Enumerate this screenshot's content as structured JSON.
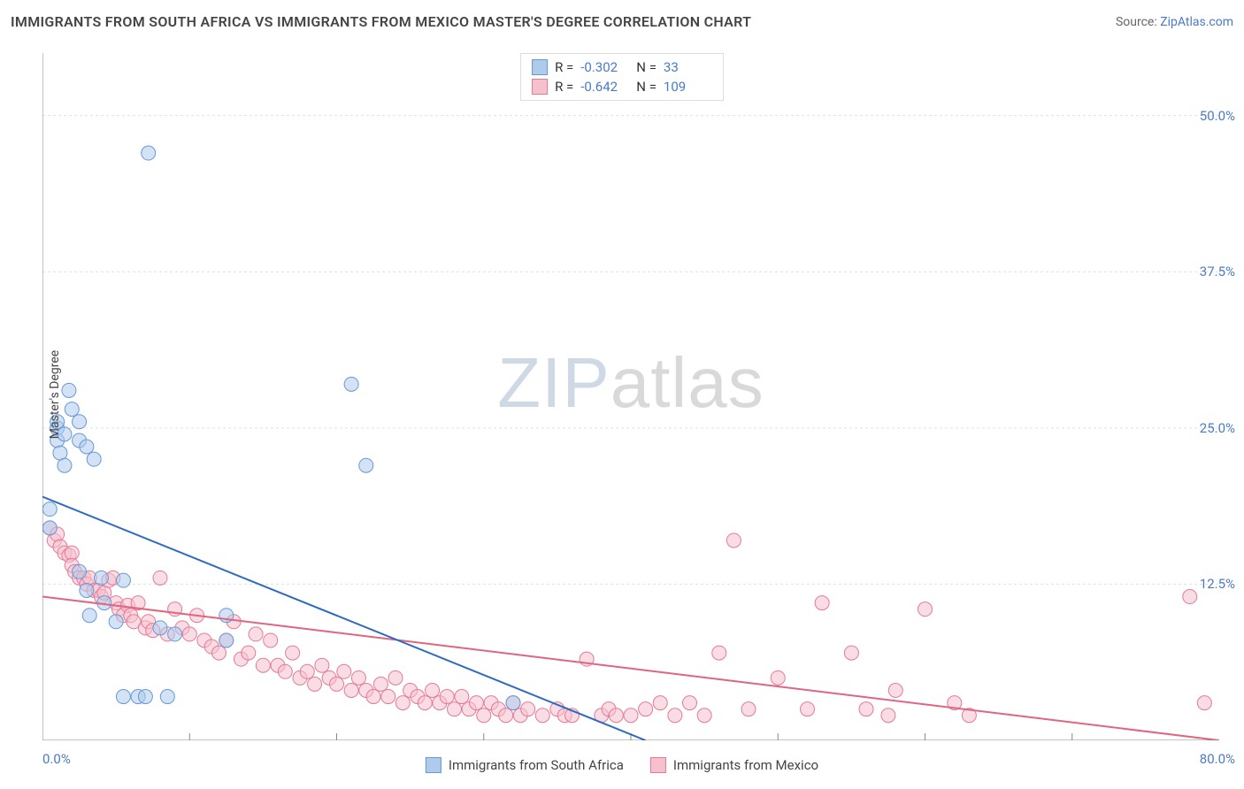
{
  "title": "IMMIGRANTS FROM SOUTH AFRICA VS IMMIGRANTS FROM MEXICO MASTER'S DEGREE CORRELATION CHART",
  "source_label": "Source:",
  "source_link_text": "ZipAtlas.com",
  "ylabel": "Master's Degree",
  "watermark_bold": "ZIP",
  "watermark_thin": "atlas",
  "correlation": [
    {
      "swatch_fill": "#aecbeb",
      "swatch_stroke": "#6699d8",
      "r_label": "R =",
      "r_value": "-0.302",
      "n_label": "N =",
      "n_value": "33"
    },
    {
      "swatch_fill": "#f6c1cd",
      "swatch_stroke": "#e47a98",
      "r_label": "R =",
      "r_value": "-0.642",
      "n_label": "N =",
      "n_value": "109"
    }
  ],
  "series": [
    {
      "name": "Immigrants from South Africa",
      "swatch_fill": "#aecbeb",
      "swatch_stroke": "#6699d8"
    },
    {
      "name": "Immigrants from Mexico",
      "swatch_fill": "#f6c1cd",
      "swatch_stroke": "#e47a98"
    }
  ],
  "chart": {
    "type": "scatter",
    "background_color": "#ffffff",
    "grid_color": "#e0e0e0",
    "grid_dash": "3,3",
    "axis_color": "#888888",
    "marker_radius": 8,
    "marker_opacity": 0.55,
    "line_width": 2,
    "xlim": [
      0,
      80
    ],
    "ylim": [
      0,
      55
    ],
    "x_ticks": [
      {
        "v": 0,
        "label": "0.0%"
      },
      {
        "v": 80,
        "label": "80.0%"
      }
    ],
    "x_minor_ticks": [
      10,
      20,
      30,
      40,
      50,
      60,
      70
    ],
    "y_ticks": [
      {
        "v": 12.5,
        "label": "12.5%"
      },
      {
        "v": 25.0,
        "label": "25.0%"
      },
      {
        "v": 37.5,
        "label": "37.5%"
      },
      {
        "v": 50.0,
        "label": "50.0%"
      }
    ],
    "series1": {
      "color_fill": "#aecbeb",
      "color_stroke": "#6699d8",
      "line_color": "#2e6bc0",
      "line_start": [
        0,
        19.5
      ],
      "line_end": [
        41,
        0
      ],
      "points": [
        [
          0.5,
          18.5
        ],
        [
          0.5,
          17.0
        ],
        [
          1.0,
          24.0
        ],
        [
          1.0,
          25.0
        ],
        [
          1.0,
          25.5
        ],
        [
          1.2,
          23.0
        ],
        [
          1.5,
          24.5
        ],
        [
          1.5,
          22.0
        ],
        [
          1.8,
          28.0
        ],
        [
          2.0,
          26.5
        ],
        [
          2.5,
          25.5
        ],
        [
          2.5,
          24.0
        ],
        [
          2.5,
          13.5
        ],
        [
          3.0,
          23.5
        ],
        [
          3.0,
          12.0
        ],
        [
          3.2,
          10.0
        ],
        [
          3.5,
          22.5
        ],
        [
          4.0,
          13.0
        ],
        [
          4.2,
          11.0
        ],
        [
          5.0,
          9.5
        ],
        [
          5.5,
          12.8
        ],
        [
          5.5,
          3.5
        ],
        [
          6.5,
          3.5
        ],
        [
          7.0,
          3.5
        ],
        [
          7.2,
          47.0
        ],
        [
          8.0,
          9.0
        ],
        [
          8.5,
          3.5
        ],
        [
          9.0,
          8.5
        ],
        [
          12.5,
          10.0
        ],
        [
          12.5,
          8.0
        ],
        [
          21.0,
          28.5
        ],
        [
          22.0,
          22.0
        ],
        [
          32.0,
          3.0
        ]
      ]
    },
    "series2": {
      "color_fill": "#f6c1cd",
      "color_stroke": "#e47a98",
      "line_color": "#e0657f",
      "line_start": [
        0,
        11.5
      ],
      "line_end": [
        80,
        0
      ],
      "points": [
        [
          0.5,
          17.0
        ],
        [
          0.8,
          16.0
        ],
        [
          1.0,
          16.5
        ],
        [
          1.2,
          15.5
        ],
        [
          1.5,
          15.0
        ],
        [
          1.8,
          14.8
        ],
        [
          2.0,
          15.0
        ],
        [
          2.0,
          14.0
        ],
        [
          2.2,
          13.5
        ],
        [
          2.5,
          13.0
        ],
        [
          2.8,
          13.0
        ],
        [
          3.0,
          12.5
        ],
        [
          3.2,
          13.0
        ],
        [
          3.5,
          12.0
        ],
        [
          3.8,
          12.0
        ],
        [
          4.0,
          11.5
        ],
        [
          4.2,
          11.8
        ],
        [
          4.5,
          12.8
        ],
        [
          4.8,
          13.0
        ],
        [
          5.0,
          11.0
        ],
        [
          5.2,
          10.5
        ],
        [
          5.5,
          10.0
        ],
        [
          5.8,
          10.8
        ],
        [
          6.0,
          10.0
        ],
        [
          6.2,
          9.5
        ],
        [
          6.5,
          11.0
        ],
        [
          7.0,
          9.0
        ],
        [
          7.2,
          9.5
        ],
        [
          7.5,
          8.8
        ],
        [
          8.0,
          13.0
        ],
        [
          8.5,
          8.5
        ],
        [
          9.0,
          10.5
        ],
        [
          9.5,
          9.0
        ],
        [
          10.0,
          8.5
        ],
        [
          10.5,
          10.0
        ],
        [
          11.0,
          8.0
        ],
        [
          11.5,
          7.5
        ],
        [
          12.0,
          7.0
        ],
        [
          12.5,
          8.0
        ],
        [
          13.0,
          9.5
        ],
        [
          13.5,
          6.5
        ],
        [
          14.0,
          7.0
        ],
        [
          14.5,
          8.5
        ],
        [
          15.0,
          6.0
        ],
        [
          15.5,
          8.0
        ],
        [
          16.0,
          6.0
        ],
        [
          16.5,
          5.5
        ],
        [
          17.0,
          7.0
        ],
        [
          17.5,
          5.0
        ],
        [
          18.0,
          5.5
        ],
        [
          18.5,
          4.5
        ],
        [
          19.0,
          6.0
        ],
        [
          19.5,
          5.0
        ],
        [
          20.0,
          4.5
        ],
        [
          20.5,
          5.5
        ],
        [
          21.0,
          4.0
        ],
        [
          21.5,
          5.0
        ],
        [
          22.0,
          4.0
        ],
        [
          22.5,
          3.5
        ],
        [
          23.0,
          4.5
        ],
        [
          23.5,
          3.5
        ],
        [
          24.0,
          5.0
        ],
        [
          24.5,
          3.0
        ],
        [
          25.0,
          4.0
        ],
        [
          25.5,
          3.5
        ],
        [
          26.0,
          3.0
        ],
        [
          26.5,
          4.0
        ],
        [
          27.0,
          3.0
        ],
        [
          27.5,
          3.5
        ],
        [
          28.0,
          2.5
        ],
        [
          28.5,
          3.5
        ],
        [
          29.0,
          2.5
        ],
        [
          29.5,
          3.0
        ],
        [
          30.0,
          2.0
        ],
        [
          30.5,
          3.0
        ],
        [
          31.0,
          2.5
        ],
        [
          31.5,
          2.0
        ],
        [
          32.0,
          3.0
        ],
        [
          32.5,
          2.0
        ],
        [
          33.0,
          2.5
        ],
        [
          34.0,
          2.0
        ],
        [
          35.0,
          2.5
        ],
        [
          35.5,
          2.0
        ],
        [
          36.0,
          2.0
        ],
        [
          37.0,
          6.5
        ],
        [
          38.0,
          2.0
        ],
        [
          38.5,
          2.5
        ],
        [
          39.0,
          2.0
        ],
        [
          40.0,
          2.0
        ],
        [
          41.0,
          2.5
        ],
        [
          42.0,
          3.0
        ],
        [
          43.0,
          2.0
        ],
        [
          44.0,
          3.0
        ],
        [
          45.0,
          2.0
        ],
        [
          46.0,
          7.0
        ],
        [
          47.0,
          16.0
        ],
        [
          48.0,
          2.5
        ],
        [
          50.0,
          5.0
        ],
        [
          52.0,
          2.5
        ],
        [
          53.0,
          11.0
        ],
        [
          55.0,
          7.0
        ],
        [
          56.0,
          2.5
        ],
        [
          57.5,
          2.0
        ],
        [
          58.0,
          4.0
        ],
        [
          60.0,
          10.5
        ],
        [
          62.0,
          3.0
        ],
        [
          63.0,
          2.0
        ],
        [
          78.0,
          11.5
        ],
        [
          79.0,
          3.0
        ]
      ]
    }
  }
}
